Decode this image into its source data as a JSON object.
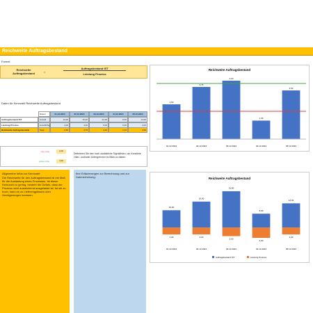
{
  "header": {
    "title": "Reichweite Auftragsbestand"
  },
  "formula": {
    "heading": "Formel",
    "result": "Reichweite Auftragsbestand",
    "operator": "=",
    "numerator": "Auftragsbestand IST",
    "denominator": "Leistung Prozess"
  },
  "table": {
    "title": "Daten für Kennzahl Reichweite Auftragsbestand",
    "date_label": "Datum",
    "dates": [
      "01.12.2024",
      "02.12.2024",
      "03.12.2024",
      "04.12.2024",
      "05.12.2024"
    ],
    "rows": [
      {
        "name": "Auftragsbestand IST",
        "unit": "Anzahl",
        "values": [
          10,
          15,
          21,
          8,
          14
        ],
        "value_labels": [
          "10,00",
          "15,00",
          "21,00",
          "8,00",
          "14,00"
        ]
      },
      {
        "name": "Leistung Prozess",
        "unit": "Anzahl/Tag",
        "values": [
          4,
          4,
          5,
          6,
          4
        ],
        "value_labels": [
          "4,00",
          "4,00",
          "5,00",
          "6,00",
          "4,00"
        ]
      },
      {
        "name": "Reichweite Auftragsbestand",
        "unit": "Tage",
        "values": [
          2.5,
          3.75,
          4.2,
          1.33,
          3.5
        ],
        "value_labels": [
          "2,50",
          "3,75",
          "4,20",
          "1,33",
          "3,50"
        ]
      }
    ]
  },
  "signals": {
    "lines": [
      {
        "label": "rote Linie",
        "value": 2,
        "value_label": "2,00",
        "color": "#e53935"
      },
      {
        "label": "grüne Linie",
        "value": 4,
        "value_label": "4,00",
        "color": "#43a047"
      }
    ],
    "note": "Definieren Sie hier noch zusätzliche Signallinien, um Kennlinie Ober- und/oder Untergrenzen im Blick zu haben."
  },
  "info": {
    "title": "Allgemeine Infos zur Kennzahl:",
    "text": "Die Reichweite für den Auftragsbestand ist ein Maß für die Auslastung eines Prozesses. Ist dieser Kennzahl zu gering, besteht die Gefahr, dass der Prozess nicht ausreichend ausgelastet ist. Ist sie zu hoch, kann es zu Lieferengpässen oder Verzögerungen kommen."
  },
  "notes": {
    "title": "Ihre Erläuterungen zur Berechnung und zur Datenerhebung:"
  },
  "chart_data": [
    {
      "type": "bar",
      "title": "Reichweite Auftragsbestand",
      "categories": [
        "01.12.2024",
        "02.12.2024",
        "03.12.2024",
        "04.12.2024",
        "05.12.2024"
      ],
      "values": [
        2.5,
        3.75,
        4.2,
        1.33,
        3.5
      ],
      "value_labels": [
        "2,50",
        "3,75",
        "4,20",
        "1,33",
        "3,50"
      ],
      "color": "#4472c4",
      "ylim": [
        0,
        5
      ]
    },
    {
      "type": "mirror",
      "title": "Reichweite Auftragsbestand",
      "categories": [
        "01.12.2024",
        "02.12.2024",
        "03.12.2024",
        "04.12.2024",
        "05.12.2024"
      ],
      "series": [
        {
          "name": "Auftragsbestand IST",
          "color": "#4472c4",
          "values": [
            10,
            15,
            21,
            8,
            14
          ],
          "value_labels": [
            "10,00",
            "15,00",
            "21,00",
            "8,00",
            "14,00"
          ]
        },
        {
          "name": "Leistung Prozess",
          "color": "#ed7d31",
          "values": [
            4,
            4,
            5,
            6,
            4
          ],
          "value_labels": [
            "4,00",
            "4,00",
            "5,00",
            "6,00",
            "4,00"
          ]
        }
      ],
      "ylim": [
        -6,
        25
      ]
    }
  ]
}
